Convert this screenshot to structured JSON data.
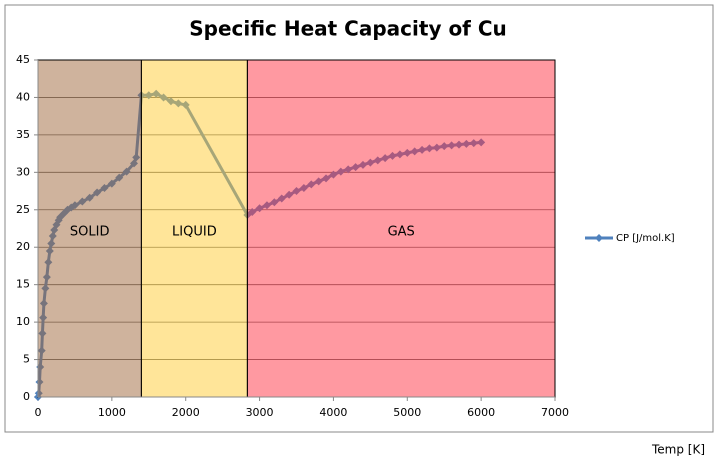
{
  "chart_data": {
    "type": "line",
    "title": "Specific Heat Capacity of Cu",
    "x_label": "Temp [K]",
    "xlim": [
      0,
      7000
    ],
    "xticks": [
      0,
      1000,
      2000,
      3000,
      4000,
      5000,
      6000,
      7000
    ],
    "ylim": [
      0,
      45
    ],
    "yticks": [
      0,
      5,
      10,
      15,
      20,
      25,
      30,
      35,
      40,
      45
    ],
    "grid": true,
    "legend": "right",
    "regions": [
      {
        "label": "SOLID",
        "start": 0,
        "end": 1400,
        "color": "#a0683c"
      },
      {
        "label": "LIQUID",
        "start": 1400,
        "end": 2835,
        "color": "#ffcc33"
      },
      {
        "label": "GAS",
        "start": 2835,
        "end": 7000,
        "color": "#ff3344"
      }
    ],
    "series": [
      {
        "name": "CP [J/mol.K]",
        "color": "#4f81bd",
        "x": [
          0,
          10,
          20,
          30,
          50,
          60,
          70,
          80,
          100,
          120,
          140,
          160,
          180,
          200,
          220,
          250,
          280,
          300,
          350,
          400,
          450,
          500,
          600,
          700,
          800,
          900,
          1000,
          1100,
          1200,
          1300,
          1330,
          1400,
          1500,
          1600,
          1700,
          1800,
          1900,
          2000,
          2835,
          2900,
          3000,
          3100,
          3200,
          3300,
          3400,
          3500,
          3600,
          3700,
          3800,
          3900,
          4000,
          4100,
          4200,
          4300,
          4400,
          4500,
          4600,
          4700,
          4800,
          4900,
          5000,
          5100,
          5200,
          5300,
          5400,
          5500,
          5600,
          5700,
          5800,
          5900,
          6000
        ],
        "values": [
          0,
          0.5,
          2,
          4,
          6.2,
          8.5,
          10.6,
          12.5,
          14.5,
          16,
          18,
          19.5,
          20.5,
          21.5,
          22.3,
          23,
          23.6,
          24,
          24.5,
          25,
          25.3,
          25.6,
          26.1,
          26.6,
          27.3,
          27.9,
          28.5,
          29.3,
          30.1,
          31.2,
          32,
          40.3,
          40.3,
          40.5,
          40,
          39.5,
          39.2,
          39,
          24.3,
          24.7,
          25.2,
          25.6,
          26,
          26.5,
          27,
          27.5,
          27.9,
          28.4,
          28.8,
          29.2,
          29.7,
          30.1,
          30.4,
          30.7,
          31,
          31.3,
          31.6,
          31.9,
          32.2,
          32.4,
          32.6,
          32.8,
          33,
          33.2,
          33.3,
          33.5,
          33.6,
          33.7,
          33.8,
          33.9,
          34
        ]
      }
    ]
  }
}
